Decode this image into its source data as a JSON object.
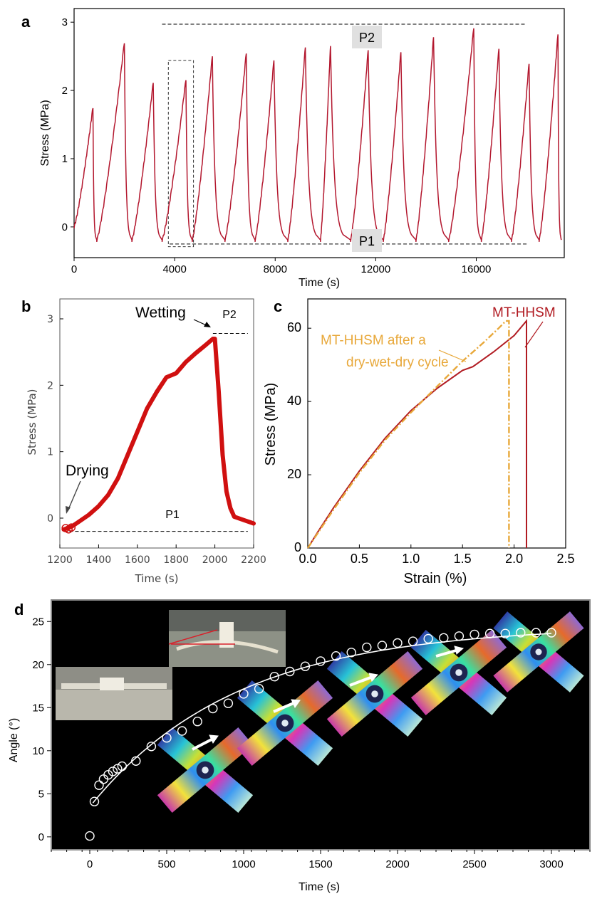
{
  "panel_labels": {
    "a": "a",
    "b": "b",
    "c": "c",
    "d": "d"
  },
  "colors": {
    "line_a": "#b3172e",
    "line_b": "#d01010",
    "mt_hhsm": "#b11b22",
    "after_cycle": "#e8a83a",
    "panel_d_bg": "#000000"
  },
  "chart_data": [
    {
      "id": "panel-a",
      "type": "line",
      "xlabel": "Time (s)",
      "ylabel": "Stress (MPa)",
      "xlim": [
        0,
        19500
      ],
      "ylim": [
        -0.45,
        3.2
      ],
      "xticks": [
        0,
        4000,
        8000,
        12000,
        16000
      ],
      "xtick_labels": [
        "0",
        "4000",
        "8000",
        "12000",
        "16000"
      ],
      "yticks": [
        0,
        1,
        2,
        3
      ],
      "ytick_labels": [
        "0",
        "1",
        "2",
        "3"
      ],
      "cycles": {
        "starts": [
          0,
          900,
          2300,
          3500,
          4700,
          6000,
          7200,
          8500,
          9800,
          11000,
          12300,
          13600,
          14900,
          16200,
          17400,
          18500
        ],
        "peaks": [
          750,
          2000,
          3150,
          4450,
          5500,
          6850,
          7950,
          9200,
          10200,
          11700,
          13000,
          14300,
          15900,
          16900,
          18100,
          19250
        ],
        "peak_values": [
          1.76,
          2.71,
          2.13,
          2.17,
          2.52,
          2.56,
          2.46,
          2.65,
          2.67,
          2.61,
          2.58,
          2.8,
          2.93,
          2.63,
          2.41,
          2.84
        ],
        "baseline": -0.2
      },
      "annotations": [
        {
          "label": "P2",
          "level": 2.97,
          "from": 3500,
          "to": 18000
        },
        {
          "label": "P1",
          "level": -0.25,
          "from": 3800,
          "to": 18000
        }
      ],
      "highlight_box": {
        "x": [
          3750,
          4750
        ],
        "y": [
          -0.29,
          2.44
        ]
      }
    },
    {
      "id": "panel-b",
      "type": "line",
      "xlabel": "Time (s)",
      "ylabel": "Stress (MPa)",
      "xlim": [
        1200,
        2200
      ],
      "ylim": [
        -0.45,
        3.3
      ],
      "xticks": [
        1200,
        1400,
        1600,
        1800,
        2000,
        2200
      ],
      "xtick_labels": [
        "1200",
        "1400",
        "1600",
        "1800",
        "2000",
        "2200"
      ],
      "yticks": [
        0,
        1,
        2,
        3
      ],
      "ytick_labels": [
        "0",
        "1",
        "2",
        "3"
      ],
      "x": [
        1220,
        1260,
        1300,
        1350,
        1400,
        1450,
        1500,
        1550,
        1600,
        1650,
        1700,
        1750,
        1800,
        1850,
        1900,
        1950,
        1990,
        2000,
        2020,
        2040,
        2060,
        2080,
        2100,
        2150,
        2200
      ],
      "y": [
        -0.17,
        -0.13,
        -0.05,
        0.05,
        0.18,
        0.35,
        0.6,
        0.95,
        1.3,
        1.65,
        1.9,
        2.12,
        2.18,
        2.35,
        2.48,
        2.6,
        2.7,
        2.7,
        1.9,
        0.95,
        0.4,
        0.15,
        0.02,
        -0.03,
        -0.08
      ],
      "annotations": [
        {
          "label": "P2",
          "level": 2.78
        },
        {
          "label": "P1",
          "level": -0.2
        },
        {
          "label": "Wetting",
          "x": 1990,
          "y": 2.72
        },
        {
          "label": "Drying",
          "x": 1225,
          "y": -0.02
        }
      ]
    },
    {
      "id": "panel-c",
      "type": "line",
      "xlabel": "Strain (%)",
      "ylabel": "Stress (MPa)",
      "xlim": [
        0,
        2.5
      ],
      "ylim": [
        0,
        68
      ],
      "xticks": [
        0,
        0.5,
        1.0,
        1.5,
        2.0,
        2.5
      ],
      "xtick_labels": [
        "0.0",
        "0.5",
        "1.0",
        "1.5",
        "2.0",
        "2.5"
      ],
      "yticks": [
        0,
        20,
        40,
        60
      ],
      "ytick_labels": [
        "0",
        "20",
        "40",
        "60"
      ],
      "series": [
        {
          "name": "MT-HHSM",
          "x": [
            0,
            0.1,
            0.25,
            0.5,
            0.75,
            1.0,
            1.25,
            1.5,
            1.6,
            1.8,
            2.0,
            2.12,
            2.12
          ],
          "y": [
            0,
            4.5,
            11,
            21,
            30,
            37.5,
            43.5,
            48.5,
            49.5,
            53.5,
            58,
            62,
            0
          ]
        },
        {
          "name": "MT-HHSM after a dry-wet-dry cycle",
          "x": [
            0,
            0.1,
            0.25,
            0.5,
            0.75,
            1.0,
            1.25,
            1.5,
            1.7,
            1.85,
            1.92,
            1.95,
            1.95
          ],
          "y": [
            0,
            4.2,
            10.5,
            20.5,
            29.5,
            37,
            44,
            51,
            56,
            60,
            62,
            62,
            0
          ]
        }
      ]
    },
    {
      "id": "panel-d",
      "type": "scatter",
      "xlabel": "Time (s)",
      "ylabel": "Angle (°)",
      "xlim": [
        -250,
        3250
      ],
      "ylim": [
        -1.5,
        27.5
      ],
      "xticks": [
        0,
        500,
        1000,
        1500,
        2000,
        2500,
        3000
      ],
      "xtick_labels": [
        "0",
        "500",
        "1000",
        "1500",
        "2000",
        "2500",
        "3000"
      ],
      "yticks": [
        0,
        5,
        10,
        15,
        20,
        25
      ],
      "ytick_labels": [
        "0",
        "5",
        "10",
        "15",
        "20",
        "25"
      ],
      "x": [
        0,
        30,
        60,
        90,
        120,
        150,
        180,
        210,
        300,
        400,
        500,
        600,
        700,
        800,
        900,
        1000,
        1100,
        1200,
        1300,
        1400,
        1500,
        1600,
        1700,
        1800,
        1900,
        2000,
        2100,
        2200,
        2300,
        2400,
        2500,
        2600,
        2700,
        2800,
        2900,
        3000
      ],
      "y": [
        0.1,
        4.1,
        6.0,
        6.7,
        7.2,
        7.6,
        7.9,
        8.2,
        8.8,
        10.5,
        11.5,
        12.3,
        13.4,
        14.9,
        15.5,
        16.6,
        17.2,
        18.6,
        19.2,
        19.8,
        20.4,
        21.0,
        21.4,
        22.0,
        22.2,
        22.5,
        22.7,
        23.0,
        23.1,
        23.3,
        23.5,
        23.6,
        23.6,
        23.7,
        23.7,
        23.7
      ],
      "fit_curve": {
        "model": "y = 24.5 - 21*exp(-x/950)",
        "x_range": [
          20,
          3000
        ]
      }
    }
  ]
}
